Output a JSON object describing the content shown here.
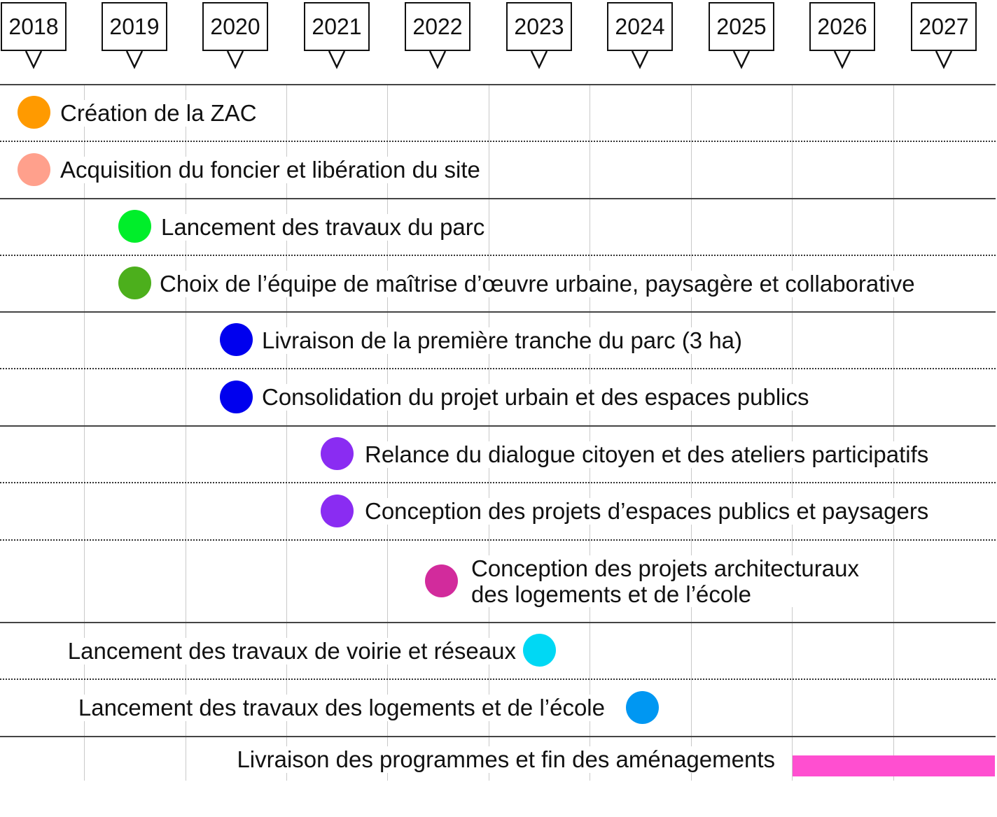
{
  "timeline": {
    "years": [
      "2018",
      "2019",
      "2020",
      "2021",
      "2022",
      "2023",
      "2024",
      "2025",
      "2026",
      "2027"
    ],
    "rows": [
      {
        "label": "Création de la ZAC",
        "color": "#ff9a00",
        "marker": "dot"
      },
      {
        "label": "Acquisition du foncier et libération du site",
        "color": "#ffa08c",
        "marker": "dot"
      },
      {
        "label": "Lancement des travaux du parc",
        "color": "#00ee2a",
        "marker": "dot"
      },
      {
        "label": "Choix de l’équipe de maîtrise d’œuvre urbaine, paysagère et collaborative",
        "color": "#4caf1c",
        "marker": "dot"
      },
      {
        "label": "Livraison de la première tranche du parc (3 ha)",
        "color": "#0000ee",
        "marker": "dot"
      },
      {
        "label": "Consolidation du projet urbain et des espaces publics",
        "color": "#0000ee",
        "marker": "dot"
      },
      {
        "label": "Relance du dialogue citoyen et des ateliers participatifs",
        "color": "#8a2cf2",
        "marker": "dot"
      },
      {
        "label": "Conception des projets d’espaces publics et paysagers",
        "color": "#8a2cf2",
        "marker": "dot"
      },
      {
        "label": "Conception des projets architecturaux\ndes logements et de l’école",
        "color": "#d22b9c",
        "marker": "dot"
      },
      {
        "label": "Lancement des travaux de voirie et réseaux",
        "color": "#00d8f4",
        "marker": "dot"
      },
      {
        "label": "Lancement des travaux des logements et de l’école",
        "color": "#0097f2",
        "marker": "dot"
      },
      {
        "label": "Livraison des programmes et fin des aménagements",
        "color": "#ff4fd0",
        "marker": "bar"
      }
    ]
  }
}
